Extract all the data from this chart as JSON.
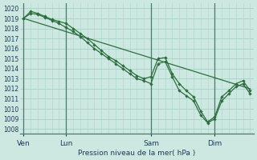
{
  "title": "Pression niveau de la mer( hPa )",
  "bg_color": "#cce8e0",
  "grid_color": "#aad4cc",
  "line_color": "#2d6e3e",
  "vline_color": "#4a7a6a",
  "ylim": [
    1007.5,
    1020.5
  ],
  "yticks": [
    1008,
    1009,
    1010,
    1011,
    1012,
    1013,
    1014,
    1015,
    1016,
    1017,
    1018,
    1019,
    1020
  ],
  "x_day_labels": [
    {
      "label": "Ven",
      "x": 0
    },
    {
      "label": "Lun",
      "x": 36
    },
    {
      "label": "Sam",
      "x": 108
    },
    {
      "label": "Dim",
      "x": 162
    }
  ],
  "x_vlines": [
    0,
    36,
    108,
    162
  ],
  "xlim": [
    -3,
    195
  ],
  "series1_x": [
    0,
    6,
    12,
    18,
    24,
    30,
    36,
    42,
    48,
    54,
    60,
    66,
    72,
    78,
    84,
    90,
    96,
    102,
    108,
    114,
    120,
    126,
    132,
    138,
    144,
    150,
    156,
    162,
    168,
    174,
    180,
    186,
    192
  ],
  "series1_y": [
    1019.0,
    1019.5,
    1019.4,
    1019.1,
    1018.8,
    1018.5,
    1018.1,
    1017.7,
    1017.2,
    1016.6,
    1016.0,
    1015.5,
    1015.0,
    1014.5,
    1014.0,
    1013.5,
    1013.0,
    1012.8,
    1012.5,
    1014.5,
    1014.7,
    1013.2,
    1011.8,
    1011.3,
    1010.8,
    1009.4,
    1008.6,
    1009.0,
    1010.8,
    1011.5,
    1012.2,
    1012.5,
    1011.5
  ],
  "series2_x": [
    0,
    6,
    12,
    18,
    24,
    30,
    36,
    42,
    48,
    54,
    60,
    66,
    72,
    78,
    84,
    90,
    96,
    102,
    108,
    114,
    120,
    126,
    132,
    138,
    144,
    150,
    156,
    162,
    168,
    174,
    180,
    186,
    192
  ],
  "series2_y": [
    1019.0,
    1019.7,
    1019.5,
    1019.2,
    1018.9,
    1018.7,
    1018.5,
    1018.0,
    1017.5,
    1017.0,
    1016.4,
    1015.8,
    1015.2,
    1014.8,
    1014.3,
    1013.8,
    1013.3,
    1013.0,
    1013.2,
    1015.0,
    1015.1,
    1013.5,
    1012.5,
    1011.8,
    1011.2,
    1009.8,
    1008.7,
    1009.2,
    1011.2,
    1011.8,
    1012.5,
    1012.8,
    1011.8
  ],
  "series3_x": [
    0,
    192
  ],
  "series3_y": [
    1019.0,
    1012.0
  ]
}
